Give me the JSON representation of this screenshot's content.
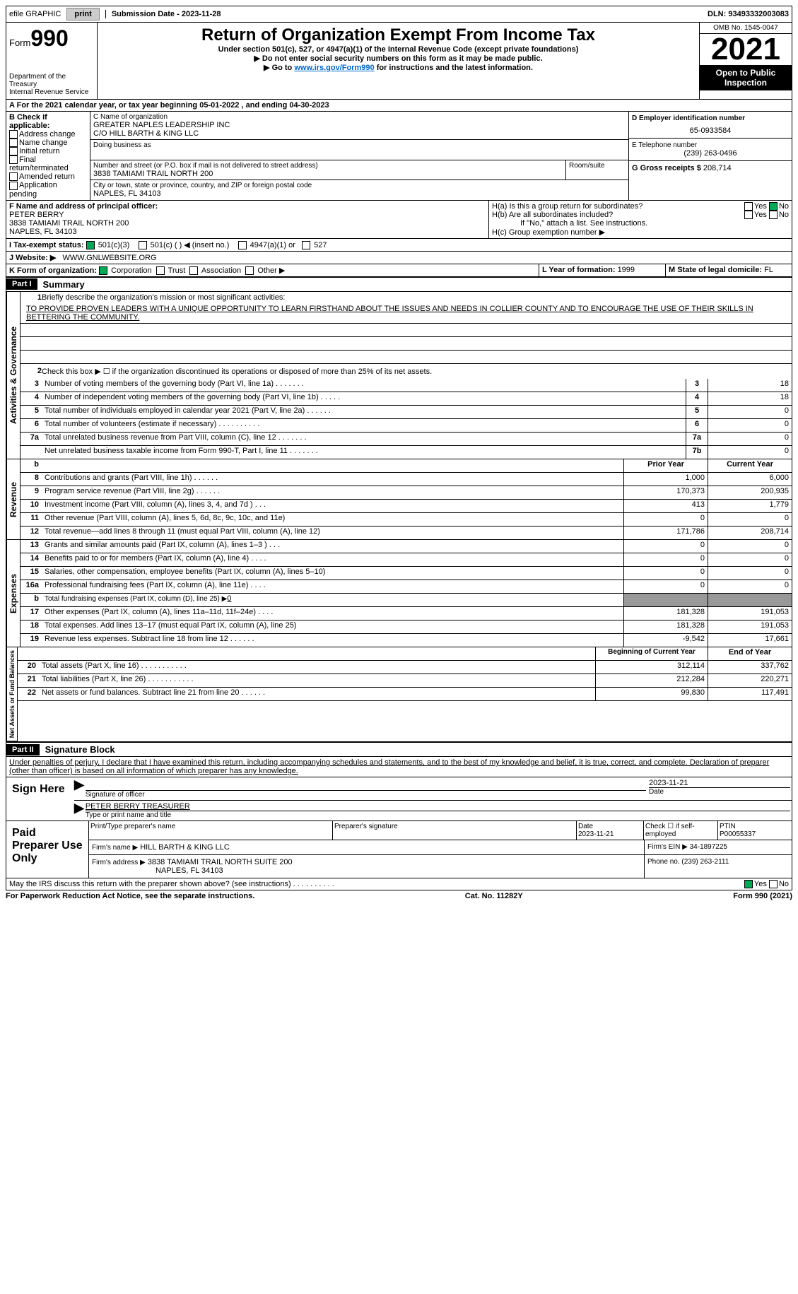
{
  "topbar": {
    "efile": "efile GRAPHIC",
    "print": "print",
    "sub_lbl": "Submission Date - ",
    "sub_date": "2023-11-28",
    "dln_lbl": "DLN: ",
    "dln": "93493332003083"
  },
  "header": {
    "form": "Form",
    "num": "990",
    "dept": "Department of the Treasury",
    "irs": "Internal Revenue Service",
    "title": "Return of Organization Exempt From Income Tax",
    "sub1": "Under section 501(c), 527, or 4947(a)(1) of the Internal Revenue Code (except private foundations)",
    "sub2": "▶ Do not enter social security numbers on this form as it may be made public.",
    "sub3a": "▶ Go to ",
    "sub3link": "www.irs.gov/Form990",
    "sub3b": " for instructions and the latest information.",
    "omb": "OMB No. 1545-0047",
    "year": "2021",
    "open": "Open to Public Inspection"
  },
  "a": {
    "text": "For the 2021 calendar year, or tax year beginning ",
    "begin": "05-01-2022",
    "mid": " , and ending ",
    "end": "04-30-2023"
  },
  "b": {
    "lbl": "B Check if applicable:",
    "opts": [
      "Address change",
      "Name change",
      "Initial return",
      "Final return/terminated",
      "Amended return",
      "Application pending"
    ]
  },
  "c": {
    "name_lbl": "C Name of organization",
    "name1": "GREATER NAPLES LEADERSHIP INC",
    "name2": "C/O HILL BARTH & KING LLC",
    "dba": "Doing business as",
    "addr_lbl": "Number and street (or P.O. box if mail is not delivered to street address)",
    "room": "Room/suite",
    "addr": "3838 TAMIAMI TRAIL NORTH 200",
    "city_lbl": "City or town, state or province, country, and ZIP or foreign postal code",
    "city": "NAPLES, FL  34103"
  },
  "d": {
    "lbl": "D Employer identification number",
    "val": "65-0933584"
  },
  "e": {
    "lbl": "E Telephone number",
    "val": "(239) 263-0496"
  },
  "g": {
    "lbl": "G Gross receipts $ ",
    "val": "208,714"
  },
  "f": {
    "lbl": "F  Name and address of principal officer:",
    "name": "PETER BERRY",
    "addr": "3838 TAMIAMI TRAIL NORTH 200",
    "city": "NAPLES, FL  34103"
  },
  "h": {
    "a": "H(a)  Is this a group return for subordinates?",
    "b": "H(b)  Are all subordinates included?",
    "bnote": "If \"No,\" attach a list. See instructions.",
    "c": "H(c)  Group exemption number ▶",
    "yes": "Yes",
    "no": "No"
  },
  "i": {
    "lbl": "I    Tax-exempt status:",
    "o1": "501(c)(3)",
    "o2": "501(c) (  ) ◀ (insert no.)",
    "o3": "4947(a)(1) or",
    "o4": "527"
  },
  "j": {
    "lbl": "J   Website: ▶",
    "val": "WWW.GNLWEBSITE.ORG"
  },
  "k": {
    "lbl": "K Form of organization:",
    "o1": "Corporation",
    "o2": "Trust",
    "o3": "Association",
    "o4": "Other ▶"
  },
  "l": {
    "lbl": "L Year of formation: ",
    "val": "1999"
  },
  "m": {
    "lbl": "M State of legal domicile: ",
    "val": "FL"
  },
  "part1": {
    "hdr": "Part I",
    "title": "Summary"
  },
  "s1": {
    "num": "1",
    "lbl": "Briefly describe the organization's mission or most significant activities:",
    "txt": "TO PROVIDE PROVEN LEADERS WITH A UNIQUE OPPORTUNITY TO LEARN FIRSTHAND ABOUT THE ISSUES AND NEEDS IN COLLIER COUNTY AND TO ENCOURAGE THE USE OF THEIR SKILLS IN BETTERING THE COMMUNITY."
  },
  "s2": {
    "num": "2",
    "lbl": "Check this box ▶ ☐  if the organization discontinued its operations or disposed of more than 25% of its net assets."
  },
  "rows": [
    {
      "n": "3",
      "d": "Number of voting members of the governing body (Part VI, line 1a)   .     .     .     .     .     .     .",
      "b": "3",
      "v": "18"
    },
    {
      "n": "4",
      "d": "Number of independent voting members of the governing body (Part VI, line 1b)   .     .     .     .     .",
      "b": "4",
      "v": "18"
    },
    {
      "n": "5",
      "d": "Total number of individuals employed in calendar year 2021 (Part V, line 2a)   .     .     .     .     .     .",
      "b": "5",
      "v": "0"
    },
    {
      "n": "6",
      "d": "Total number of volunteers (estimate if necessary)     .     .     .     .     .     .     .     .     .     .",
      "b": "6",
      "v": "0"
    },
    {
      "n": "7a",
      "d": "Total unrelated business revenue from Part VIII, column (C), line 12    .     .     .     .     .     .     .",
      "b": "7a",
      "v": "0"
    },
    {
      "n": "",
      "d": "Net unrelated business taxable income from Form 990-T, Part I, line 11   .     .     .     .     .     .     .",
      "b": "7b",
      "v": "0"
    }
  ],
  "rev_hdr": {
    "py": "Prior Year",
    "cy": "Current Year"
  },
  "rev": [
    {
      "n": "8",
      "d": "Contributions and grants (Part VIII, line 1h)   .     .     .     .     .     .",
      "p": "1,000",
      "c": "6,000"
    },
    {
      "n": "9",
      "d": "Program service revenue (Part VIII, line 2g)   .     .     .     .     .     .",
      "p": "170,373",
      "c": "200,935"
    },
    {
      "n": "10",
      "d": "Investment income (Part VIII, column (A), lines 3, 4, and 7d )   .     .     .",
      "p": "413",
      "c": "1,779"
    },
    {
      "n": "11",
      "d": "Other revenue (Part VIII, column (A), lines 5, 6d, 8c, 9c, 10c, and 11e)",
      "p": "0",
      "c": "0"
    },
    {
      "n": "12",
      "d": "Total revenue—add lines 8 through 11 (must equal Part VIII, column (A), line 12)",
      "p": "171,786",
      "c": "208,714"
    }
  ],
  "exp": [
    {
      "n": "13",
      "d": "Grants and similar amounts paid (Part IX, column (A), lines 1–3 )   .     .     .",
      "p": "0",
      "c": "0"
    },
    {
      "n": "14",
      "d": "Benefits paid to or for members (Part IX, column (A), line 4)   .     .     .     .",
      "p": "0",
      "c": "0"
    },
    {
      "n": "15",
      "d": "Salaries, other compensation, employee benefits (Part IX, column (A), lines 5–10)",
      "p": "0",
      "c": "0"
    },
    {
      "n": "16a",
      "d": "Professional fundraising fees (Part IX, column (A), line 11e)   .     .     .     .",
      "p": "0",
      "c": "0"
    },
    {
      "n": "b",
      "d": "Total fundraising expenses (Part IX, column (D), line 25) ▶",
      "fe": "0",
      "gray": true
    },
    {
      "n": "17",
      "d": "Other expenses (Part IX, column (A), lines 11a–11d, 11f–24e)   .     .     .     .",
      "p": "181,328",
      "c": "191,053"
    },
    {
      "n": "18",
      "d": "Total expenses. Add lines 13–17 (must equal Part IX, column (A), line 25)",
      "p": "181,328",
      "c": "191,053"
    },
    {
      "n": "19",
      "d": "Revenue less expenses. Subtract line 18 from line 12   .     .     .     .     .     .",
      "p": "-9,542",
      "c": "17,661"
    }
  ],
  "na_hdr": {
    "b": "Beginning of Current Year",
    "e": "End of Year"
  },
  "na": [
    {
      "n": "20",
      "d": "Total assets (Part X, line 16)   .     .     .     .     .     .     .     .     .     .     .",
      "p": "312,114",
      "c": "337,762"
    },
    {
      "n": "21",
      "d": "Total liabilities (Part X, line 26)   .     .     .     .     .     .     .     .     .     .     .",
      "p": "212,284",
      "c": "220,271"
    },
    {
      "n": "22",
      "d": "Net assets or fund balances. Subtract line 21 from line 20   .     .     .     .     .     .",
      "p": "99,830",
      "c": "117,491"
    }
  ],
  "tabs": {
    "ag": "Activities & Governance",
    "rev": "Revenue",
    "exp": "Expenses",
    "na": "Net Assets or Fund Balances"
  },
  "part2": {
    "hdr": "Part II",
    "title": "Signature Block"
  },
  "pen": "Under penalties of perjury, I declare that I have examined this return, including accompanying schedules and statements, and to the best of my knowledge and belief, it is true, correct, and complete. Declaration of preparer (other than officer) is based on all information of which preparer has any knowledge.",
  "sign": {
    "here": "Sign Here",
    "sig": "Signature of officer",
    "date": "Date",
    "dval": "2023-11-21",
    "name": "PETER BERRY TREASURER",
    "type": "Type or print name and title"
  },
  "paid": {
    "lbl": "Paid Preparer Use Only",
    "pname": "Print/Type preparer's name",
    "psig": "Preparer's signature",
    "pdate": "Date",
    "pdval": "2023-11-21",
    "chk": "Check ☐ if self-employed",
    "ptin_l": "PTIN",
    "ptin": "P00055337",
    "firm_l": "Firm's name   ▶",
    "firm": "HILL BARTH & KING LLC",
    "ein_l": "Firm's EIN ▶",
    "ein": "34-1897225",
    "addr_l": "Firm's address ▶",
    "addr": "3838 TAMIAMI TRAIL NORTH SUITE 200",
    "city": "NAPLES, FL  34103",
    "ph_l": "Phone no. ",
    "ph": "(239) 263-2111"
  },
  "may": {
    "q": "May the IRS discuss this return with the preparer shown above? (see instructions)     .     .     .     .     .     .     .     .     .     .",
    "yes": "Yes",
    "no": "No"
  },
  "foot": {
    "pra": "For Paperwork Reduction Act Notice, see the separate instructions.",
    "cat": "Cat. No. 11282Y",
    "form": "Form 990 (2021)"
  }
}
